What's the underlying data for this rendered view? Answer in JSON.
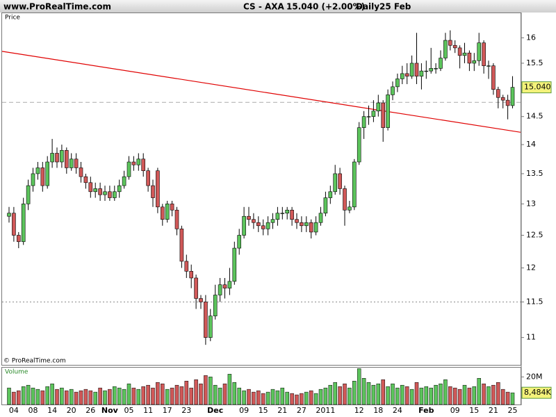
{
  "header": {
    "site": "www.ProRealTime.com",
    "symbol": "CS - AXA",
    "quote": "15.040 (+2.00%)",
    "period": "Daily",
    "date": "25 Feb"
  },
  "chart_data": {
    "type": "candlestick",
    "panel_label": "Price",
    "log_scale": true,
    "ylim": [
      10.63,
      16.5
    ],
    "yticks": [
      11,
      11.5,
      12,
      12.5,
      13,
      13.5,
      14,
      14.5,
      15.5,
      16
    ],
    "categories": [
      null,
      "04",
      null,
      null,
      null,
      "08",
      null,
      null,
      null,
      "14",
      null,
      null,
      null,
      "20",
      null,
      null,
      null,
      "26",
      null,
      null,
      null,
      "Nov",
      null,
      null,
      null,
      "05",
      null,
      null,
      null,
      "11",
      null,
      null,
      null,
      "17",
      null,
      null,
      null,
      "23",
      null,
      null,
      null,
      null,
      null,
      "Dec",
      null,
      null,
      null,
      null,
      null,
      "09",
      null,
      null,
      null,
      "15",
      null,
      null,
      null,
      "21",
      null,
      null,
      null,
      "27",
      null,
      null,
      null,
      null,
      "2011",
      null,
      null,
      null,
      null,
      null,
      null,
      "12",
      null,
      null,
      null,
      "18",
      null,
      null,
      null,
      "24",
      null,
      null,
      null,
      null,
      null,
      "Feb",
      null,
      null,
      null,
      null,
      null,
      "09",
      null,
      null,
      null,
      "15",
      null,
      null,
      null,
      "21",
      null,
      null,
      null,
      "25"
    ],
    "open": [
      12.8,
      12.85,
      12.5,
      12.4,
      13.0,
      13.3,
      13.5,
      13.6,
      13.3,
      13.7,
      13.85,
      13.7,
      13.9,
      13.6,
      13.75,
      13.6,
      13.45,
      13.35,
      13.2,
      13.25,
      13.15,
      13.2,
      13.1,
      13.2,
      13.3,
      13.45,
      13.7,
      13.65,
      13.75,
      13.55,
      13.3,
      13.55,
      12.95,
      12.75,
      13.0,
      12.9,
      12.6,
      12.1,
      11.95,
      11.85,
      11.55,
      11.5,
      11.0,
      11.3,
      11.6,
      11.75,
      11.7,
      11.8,
      12.3,
      12.5,
      12.8,
      12.75,
      12.7,
      12.65,
      12.6,
      12.7,
      12.75,
      12.85,
      12.85,
      12.9,
      12.75,
      12.7,
      12.65,
      12.7,
      12.55,
      12.7,
      12.85,
      13.1,
      13.2,
      13.5,
      13.25,
      12.9,
      12.95,
      13.7,
      14.3,
      14.5,
      14.5,
      14.6,
      14.75,
      14.3,
      14.9,
      15.05,
      15.2,
      15.3,
      15.25,
      15.5,
      15.25,
      15.35,
      15.35,
      15.4,
      15.4,
      15.6,
      15.95,
      15.85,
      15.8,
      15.65,
      15.7,
      15.5,
      15.55,
      15.9,
      15.45,
      15.45,
      15.0,
      14.85,
      14.8,
      14.7
    ],
    "high": [
      12.95,
      12.95,
      12.55,
      13.1,
      13.4,
      13.6,
      13.7,
      13.7,
      13.8,
      14.1,
      13.95,
      14.0,
      13.95,
      13.85,
      13.85,
      13.7,
      13.5,
      13.45,
      13.35,
      13.35,
      13.3,
      13.3,
      13.3,
      13.4,
      13.55,
      13.8,
      13.8,
      13.85,
      13.85,
      13.6,
      13.4,
      13.6,
      13.0,
      13.05,
      13.05,
      12.95,
      12.65,
      12.2,
      12.05,
      11.9,
      11.6,
      11.6,
      11.4,
      11.75,
      11.85,
      11.85,
      12.0,
      12.4,
      12.6,
      12.95,
      12.95,
      12.85,
      12.8,
      12.75,
      12.8,
      12.85,
      12.95,
      12.95,
      12.95,
      12.95,
      12.85,
      12.8,
      12.8,
      12.75,
      12.8,
      12.95,
      13.2,
      13.3,
      13.65,
      13.6,
      13.3,
      13.05,
      13.75,
      14.4,
      14.6,
      14.7,
      14.8,
      14.9,
      14.8,
      15.0,
      15.15,
      15.3,
      15.45,
      15.5,
      15.65,
      16.1,
      15.5,
      15.55,
      15.8,
      15.5,
      15.75,
      16.1,
      16.15,
      15.95,
      15.85,
      15.9,
      15.75,
      15.7,
      16.1,
      15.95,
      15.55,
      15.5,
      15.05,
      14.9,
      14.9,
      15.25
    ],
    "low": [
      12.7,
      12.4,
      12.3,
      12.35,
      12.9,
      13.2,
      13.4,
      13.2,
      13.25,
      13.6,
      13.6,
      13.6,
      13.5,
      13.55,
      13.5,
      13.35,
      13.25,
      13.1,
      13.1,
      13.05,
      13.05,
      13.05,
      13.05,
      13.1,
      13.25,
      13.4,
      13.55,
      13.55,
      13.45,
      13.2,
      12.95,
      12.85,
      12.65,
      12.7,
      12.8,
      12.5,
      12.0,
      11.85,
      11.7,
      11.4,
      11.4,
      10.9,
      10.95,
      11.25,
      11.5,
      11.55,
      11.6,
      11.75,
      12.2,
      12.45,
      12.65,
      12.6,
      12.55,
      12.5,
      12.5,
      12.6,
      12.65,
      12.75,
      12.75,
      12.65,
      12.6,
      12.55,
      12.55,
      12.45,
      12.5,
      12.65,
      12.8,
      13.0,
      13.15,
      13.15,
      12.65,
      12.85,
      12.9,
      13.65,
      14.1,
      14.35,
      14.4,
      14.5,
      14.05,
      14.25,
      14.8,
      14.95,
      15.1,
      15.1,
      15.2,
      15.1,
      15.0,
      15.2,
      15.3,
      15.3,
      15.35,
      15.55,
      15.75,
      15.7,
      15.4,
      15.5,
      15.35,
      15.35,
      15.45,
      15.3,
      15.2,
      14.9,
      14.65,
      14.65,
      14.45,
      14.65
    ],
    "close": [
      12.85,
      12.5,
      12.4,
      13.0,
      13.3,
      13.5,
      13.6,
      13.3,
      13.7,
      13.85,
      13.7,
      13.9,
      13.6,
      13.75,
      13.6,
      13.45,
      13.35,
      13.2,
      13.25,
      13.15,
      13.2,
      13.1,
      13.2,
      13.3,
      13.45,
      13.7,
      13.65,
      13.75,
      13.55,
      13.3,
      13.1,
      12.95,
      12.75,
      13.0,
      12.9,
      12.6,
      12.1,
      11.95,
      11.85,
      11.55,
      11.5,
      11.0,
      11.3,
      11.6,
      11.75,
      11.7,
      11.8,
      12.3,
      12.5,
      12.8,
      12.75,
      12.7,
      12.65,
      12.6,
      12.7,
      12.75,
      12.85,
      12.85,
      12.9,
      12.75,
      12.7,
      12.65,
      12.7,
      12.55,
      12.7,
      12.85,
      13.1,
      13.2,
      13.5,
      13.25,
      12.9,
      12.95,
      13.7,
      14.3,
      14.5,
      14.5,
      14.6,
      14.75,
      14.3,
      14.9,
      15.05,
      15.2,
      15.3,
      15.25,
      15.5,
      15.25,
      15.35,
      15.35,
      15.4,
      15.4,
      15.6,
      15.95,
      15.85,
      15.8,
      15.65,
      15.7,
      15.5,
      15.55,
      15.9,
      15.45,
      15.45,
      15.0,
      14.85,
      14.8,
      14.7,
      15.04
    ],
    "up_color": "#5cc45c",
    "down_color": "#d05858",
    "last_price": {
      "value": 15.04,
      "label": "15.040"
    },
    "trendline": {
      "color": "#e00000",
      "values": [
        15.71,
        14.24
      ]
    },
    "levels": [
      {
        "value": 14.76,
        "color": "#aaaaaa",
        "dash": "6,4"
      },
      {
        "value": 11.5,
        "color": "#888888",
        "dash": "2,3"
      }
    ],
    "copyright": "© ProRealTime.com",
    "volume": {
      "label": "Volume",
      "ylim": [
        0,
        26.7
      ],
      "yticks": [
        {
          "value": 20,
          "label": "20M"
        }
      ],
      "values": [
        12,
        9,
        10,
        13,
        14,
        12,
        11,
        10,
        13,
        15,
        11,
        12,
        10,
        11,
        9,
        10,
        11,
        10,
        9,
        12,
        10,
        11,
        13,
        12,
        11,
        15,
        12,
        11,
        13,
        14,
        12,
        16,
        15,
        11,
        12,
        14,
        13,
        17,
        12,
        18,
        15,
        21,
        20,
        14,
        12,
        15,
        22,
        16,
        12,
        10,
        11,
        9,
        10,
        8,
        9,
        11,
        10,
        12,
        9,
        8,
        7,
        8,
        9,
        10,
        8,
        11,
        12,
        14,
        16,
        13,
        15,
        12,
        17,
        26,
        19,
        16,
        14,
        15,
        18,
        13,
        15,
        12,
        14,
        13,
        11,
        16,
        12,
        13,
        12,
        14,
        15,
        18,
        13,
        12,
        11,
        14,
        12,
        13,
        19,
        15,
        13,
        14,
        16,
        11,
        9,
        8.484
      ],
      "last": {
        "value": 8.484,
        "label": "8,484K"
      }
    }
  }
}
